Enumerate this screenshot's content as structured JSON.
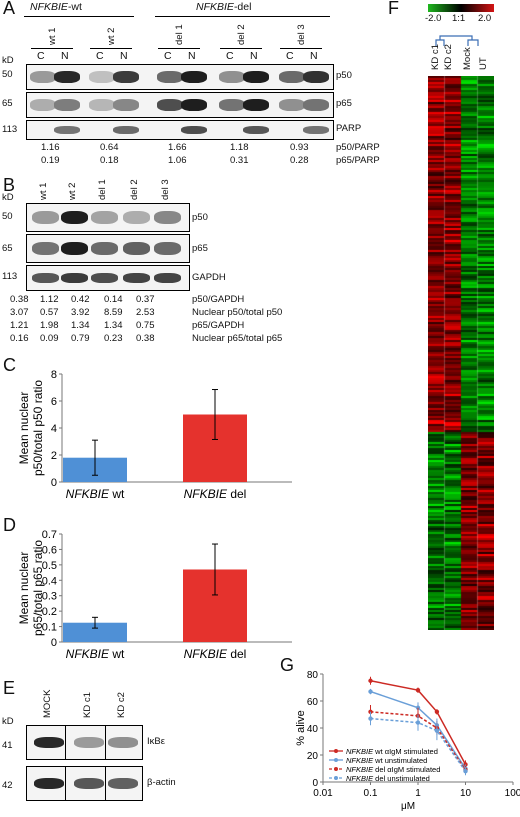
{
  "panelA": {
    "letter": "A",
    "group_wt": "NFKBIE",
    "group_wt_suffix": "-wt",
    "group_del": "NFKBIE",
    "group_del_suffix": "-del",
    "samples": [
      "wt 1",
      "wt 2",
      "del 1",
      "del 2",
      "del 3"
    ],
    "fractions": [
      "C",
      "N",
      "C",
      "N",
      "C",
      "N",
      "C",
      "N",
      "C",
      "N"
    ],
    "kd_label": "kD",
    "kd": [
      "50",
      "65",
      "113"
    ],
    "proteins": [
      "p50",
      "p65",
      "PARP"
    ],
    "ratio_rows": [
      {
        "values": [
          "1.16",
          "0.64",
          "1.66",
          "1.18",
          "0.93"
        ],
        "label": "p50/PARP"
      },
      {
        "values": [
          "0.19",
          "0.18",
          "1.06",
          "0.31",
          "0.28"
        ],
        "label": "p65/PARP"
      }
    ]
  },
  "panelB": {
    "letter": "B",
    "samples": [
      "wt 1",
      "wt 2",
      "del 1",
      "del 2",
      "del 3"
    ],
    "kd_label": "kD",
    "kd": [
      "50",
      "65",
      "113"
    ],
    "proteins": [
      "p50",
      "p65",
      "GAPDH"
    ],
    "rows": [
      {
        "values": [
          "0.38",
          "1.12",
          "0.42",
          "0.14",
          "0.37"
        ],
        "label": "p50/GAPDH"
      },
      {
        "values": [
          "3.07",
          "0.57",
          "3.92",
          "8.59",
          "2.53"
        ],
        "label": "Nuclear p50/total p50"
      },
      {
        "values": [
          "1.21",
          "1.98",
          "1.34",
          "1.34",
          "0.75"
        ],
        "label": "p65/GAPDH"
      },
      {
        "values": [
          "0.16",
          "0.09",
          "0.79",
          "0.23",
          "0.38"
        ],
        "label": "Nuclear p65/total p65"
      }
    ]
  },
  "panelE": {
    "letter": "E",
    "samples": [
      "MOCK",
      "KD c1",
      "KD c2"
    ],
    "kd_label": "kD",
    "kd": [
      "41",
      "42"
    ],
    "proteins": [
      "IκBε",
      "β-actin"
    ]
  },
  "panelF": {
    "letter": "F",
    "scale_ticks": [
      "-2.0",
      "1:1",
      "2.0"
    ],
    "columns": [
      "KD c1",
      "KD c2",
      "Mock",
      "UT"
    ]
  },
  "chart_data": [
    {
      "panel": "C",
      "type": "bar",
      "categories_gene": [
        "NFKBIE",
        "NFKBIE"
      ],
      "categories_suffix": [
        "wt",
        "del"
      ],
      "values": [
        1.8,
        5.0
      ],
      "errors": [
        1.3,
        1.85
      ],
      "colors": [
        "#4f90d6",
        "#e5322d"
      ],
      "ylabel_lines": [
        "Mean nuclear",
        "p50/total p50 ratio"
      ],
      "ylim": [
        0,
        8
      ],
      "yticks": [
        "0",
        "2",
        "4",
        "6",
        "8"
      ]
    },
    {
      "panel": "D",
      "type": "bar",
      "categories_gene": [
        "NFKBIE",
        "NFKBIE"
      ],
      "categories_suffix": [
        "wt",
        "del"
      ],
      "values": [
        0.125,
        0.47
      ],
      "errors": [
        0.035,
        0.165
      ],
      "colors": [
        "#4f90d6",
        "#e5322d"
      ],
      "ylabel_lines": [
        "Mean nuclear",
        "p65/total p65 ratio"
      ],
      "ylim": [
        0,
        0.7
      ],
      "yticks": [
        "0",
        "0.1",
        "0.2",
        "0.3",
        "0.4",
        "0.5",
        "0.6",
        "0.7"
      ]
    },
    {
      "panel": "G",
      "type": "line",
      "xscale": "log",
      "xlabel": "μM",
      "ylabel": "% alive",
      "xlim": [
        0.01,
        100
      ],
      "ylim": [
        0,
        80
      ],
      "xticks": [
        "0.01",
        "0.1",
        "1",
        "10",
        "100"
      ],
      "yticks": [
        "0",
        "20",
        "40",
        "60",
        "80"
      ],
      "x": [
        0.1,
        1,
        2.5,
        10
      ],
      "series": [
        {
          "gene": "NFKBIE",
          "name": "wt αIgM stimulated",
          "color": "#cc2a24",
          "dashed": false,
          "values": [
            75,
            68,
            52,
            13
          ],
          "errors": [
            3,
            2,
            2,
            3
          ]
        },
        {
          "gene": "NFKBIE",
          "name": "wt unstimulated",
          "color": "#6a9fd8",
          "dashed": false,
          "values": [
            67,
            55,
            42,
            10
          ],
          "errors": [
            2,
            4,
            5,
            3
          ]
        },
        {
          "gene": "NFKBIE",
          "name": "del αIgM stimulated",
          "color": "#cc2a24",
          "dashed": true,
          "values": [
            52,
            49,
            40,
            9
          ],
          "errors": [
            5,
            6,
            5,
            3
          ]
        },
        {
          "gene": "NFKBIE",
          "name": "del unstimulated",
          "color": "#6a9fd8",
          "dashed": true,
          "values": [
            47,
            44,
            38,
            8
          ],
          "errors": [
            5,
            6,
            7,
            3
          ]
        }
      ]
    }
  ]
}
